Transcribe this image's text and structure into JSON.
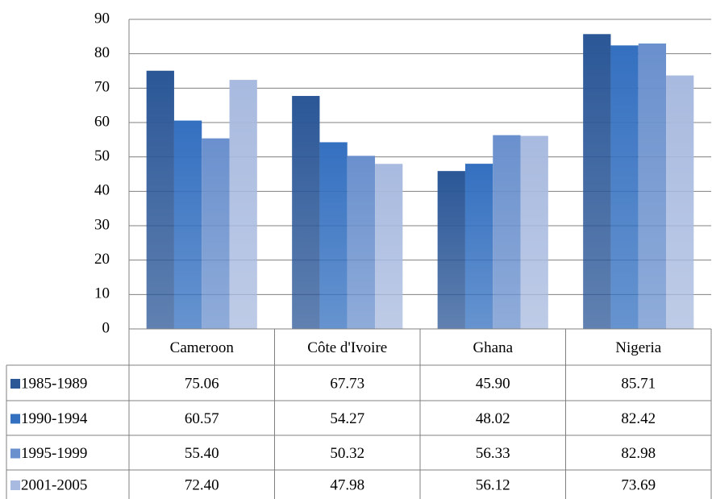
{
  "chart_data": {
    "type": "bar",
    "categories": [
      "Cameroon",
      "Côte d'Ivoire",
      "Ghana",
      "Nigeria"
    ],
    "series": [
      {
        "name": "1985-1989",
        "color": "#2b5797",
        "values": [
          75.06,
          67.73,
          45.9,
          85.71
        ],
        "value_labels": [
          "75.06",
          "67.73",
          "45.90",
          "85.71"
        ]
      },
      {
        "name": "1990-1994",
        "color": "#3470c0",
        "values": [
          60.57,
          54.27,
          48.02,
          82.42
        ],
        "value_labels": [
          "60.57",
          "54.27",
          "48.02",
          "82.42"
        ]
      },
      {
        "name": "1995-1999",
        "color": "#6a90cd",
        "values": [
          55.4,
          50.32,
          56.33,
          82.98
        ],
        "value_labels": [
          "55.40",
          "50.32",
          "56.33",
          "82.98"
        ]
      },
      {
        "name": "2001-2005",
        "color": "#a8badf",
        "values": [
          72.4,
          47.98,
          56.12,
          73.69
        ],
        "value_labels": [
          "72.40",
          "47.98",
          "56.12",
          "73.69"
        ]
      }
    ],
    "ylim": [
      0,
      90
    ],
    "yticks": [
      0,
      10,
      20,
      30,
      40,
      50,
      60,
      70,
      80,
      90
    ],
    "grid": true
  }
}
